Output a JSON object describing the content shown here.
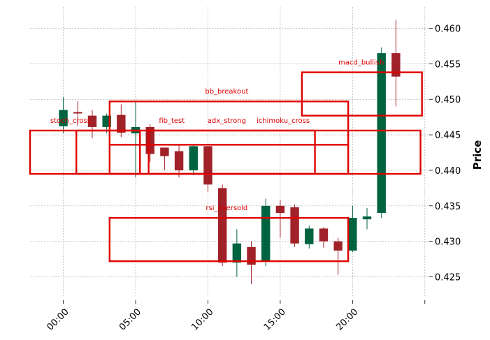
{
  "chart_data": {
    "type": "candlestick",
    "ylabel": "Price",
    "ylim": [
      0.4222,
      0.463
    ],
    "xlim": [
      -2.3,
      25.3
    ],
    "x_ticks": [
      {
        "x": 0,
        "label": "00:00"
      },
      {
        "x": 5,
        "label": "05:00"
      },
      {
        "x": 10,
        "label": "10:00"
      },
      {
        "x": 15,
        "label": "15:00"
      },
      {
        "x": 20,
        "label": "20:00"
      },
      {
        "x": 25,
        "label": ""
      }
    ],
    "y_ticks": [
      0.425,
      0.43,
      0.435,
      0.44,
      0.445,
      0.45,
      0.455,
      0.46
    ],
    "grid": true,
    "colors": {
      "up": "#006340",
      "down": "#a02128",
      "annotation": "#e00000",
      "grid": "#b0b0b0"
    },
    "candles": [
      {
        "x": 0,
        "open": 0.4462,
        "high": 0.4503,
        "low": 0.4452,
        "close": 0.4485
      },
      {
        "x": 1,
        "open": 0.4482,
        "high": 0.4497,
        "low": 0.4462,
        "close": 0.448
      },
      {
        "x": 2,
        "open": 0.4477,
        "high": 0.4485,
        "low": 0.4445,
        "close": 0.4461
      },
      {
        "x": 3,
        "open": 0.4461,
        "high": 0.448,
        "low": 0.4452,
        "close": 0.4477
      },
      {
        "x": 4,
        "open": 0.4478,
        "high": 0.4493,
        "low": 0.4447,
        "close": 0.4453
      },
      {
        "x": 5,
        "open": 0.4452,
        "high": 0.4498,
        "low": 0.439,
        "close": 0.4461
      },
      {
        "x": 6,
        "open": 0.4461,
        "high": 0.4465,
        "low": 0.4412,
        "close": 0.4423
      },
      {
        "x": 7,
        "open": 0.4432,
        "high": 0.4432,
        "low": 0.44,
        "close": 0.442
      },
      {
        "x": 8,
        "open": 0.4427,
        "high": 0.4435,
        "low": 0.439,
        "close": 0.44
      },
      {
        "x": 9,
        "open": 0.44,
        "high": 0.4435,
        "low": 0.4393,
        "close": 0.4434
      },
      {
        "x": 10,
        "open": 0.4434,
        "high": 0.4434,
        "low": 0.437,
        "close": 0.438
      },
      {
        "x": 11,
        "open": 0.4375,
        "high": 0.438,
        "low": 0.4265,
        "close": 0.427
      },
      {
        "x": 12,
        "open": 0.427,
        "high": 0.4317,
        "low": 0.425,
        "close": 0.4297
      },
      {
        "x": 13,
        "open": 0.4292,
        "high": 0.43,
        "low": 0.424,
        "close": 0.4267
      },
      {
        "x": 14,
        "open": 0.4272,
        "high": 0.436,
        "low": 0.4265,
        "close": 0.435
      },
      {
        "x": 15,
        "open": 0.435,
        "high": 0.4358,
        "low": 0.4305,
        "close": 0.434
      },
      {
        "x": 16,
        "open": 0.4348,
        "high": 0.4352,
        "low": 0.4292,
        "close": 0.4297
      },
      {
        "x": 17,
        "open": 0.4296,
        "high": 0.4322,
        "low": 0.429,
        "close": 0.4318
      },
      {
        "x": 18,
        "open": 0.4318,
        "high": 0.432,
        "low": 0.4291,
        "close": 0.43
      },
      {
        "x": 19,
        "open": 0.43,
        "high": 0.4305,
        "low": 0.4253,
        "close": 0.4287
      },
      {
        "x": 20,
        "open": 0.4287,
        "high": 0.435,
        "low": 0.4285,
        "close": 0.4333
      },
      {
        "x": 21,
        "open": 0.4331,
        "high": 0.4347,
        "low": 0.4317,
        "close": 0.4335
      },
      {
        "x": 22,
        "open": 0.434,
        "high": 0.4573,
        "low": 0.4333,
        "close": 0.4565
      },
      {
        "x": 23,
        "open": 0.4565,
        "high": 0.4612,
        "low": 0.449,
        "close": 0.4532
      }
    ],
    "annotations": [
      {
        "label": "stoch_cross",
        "x0": -2.3,
        "x1": 5.3,
        "y0": 0.4395,
        "y1": 0.4456
      },
      {
        "label": "fib_test",
        "x0": 0.9,
        "x1": 17.4,
        "y0": 0.4395,
        "y1": 0.4456
      },
      {
        "label": "adx_strong",
        "x0": 3.2,
        "x1": 19.7,
        "y0": 0.4395,
        "y1": 0.4436
      },
      {
        "label": "ichimoku_cross",
        "x0": 5.9,
        "x1": 24.7,
        "y0": 0.4395,
        "y1": 0.4456
      },
      {
        "label": "bb_breakout",
        "x0": 3.2,
        "x1": 19.7,
        "y0": 0.4436,
        "y1": 0.4497
      },
      {
        "label": "macd_bullish",
        "x0": 16.5,
        "x1": 24.8,
        "y0": 0.4477,
        "y1": 0.4538
      },
      {
        "label": "rsi_oversold",
        "x0": 3.2,
        "x1": 19.7,
        "y0": 0.4272,
        "y1": 0.4333
      }
    ],
    "annotation_labels": [
      {
        "label": "stoch_cross",
        "x": 0.5,
        "y": 0.4467
      },
      {
        "label": "fib_test",
        "x": 7.5,
        "y": 0.4467
      },
      {
        "label": "adx_strong",
        "x": 11.3,
        "y": 0.4467
      },
      {
        "label": "ichimoku_cross",
        "x": 15.2,
        "y": 0.4467
      },
      {
        "label": "bb_breakout",
        "x": 11.3,
        "y": 0.4508
      },
      {
        "label": "macd_bullish",
        "x": 20.6,
        "y": 0.4549
      },
      {
        "label": "rsi_oversold",
        "x": 11.3,
        "y": 0.4344
      }
    ]
  }
}
